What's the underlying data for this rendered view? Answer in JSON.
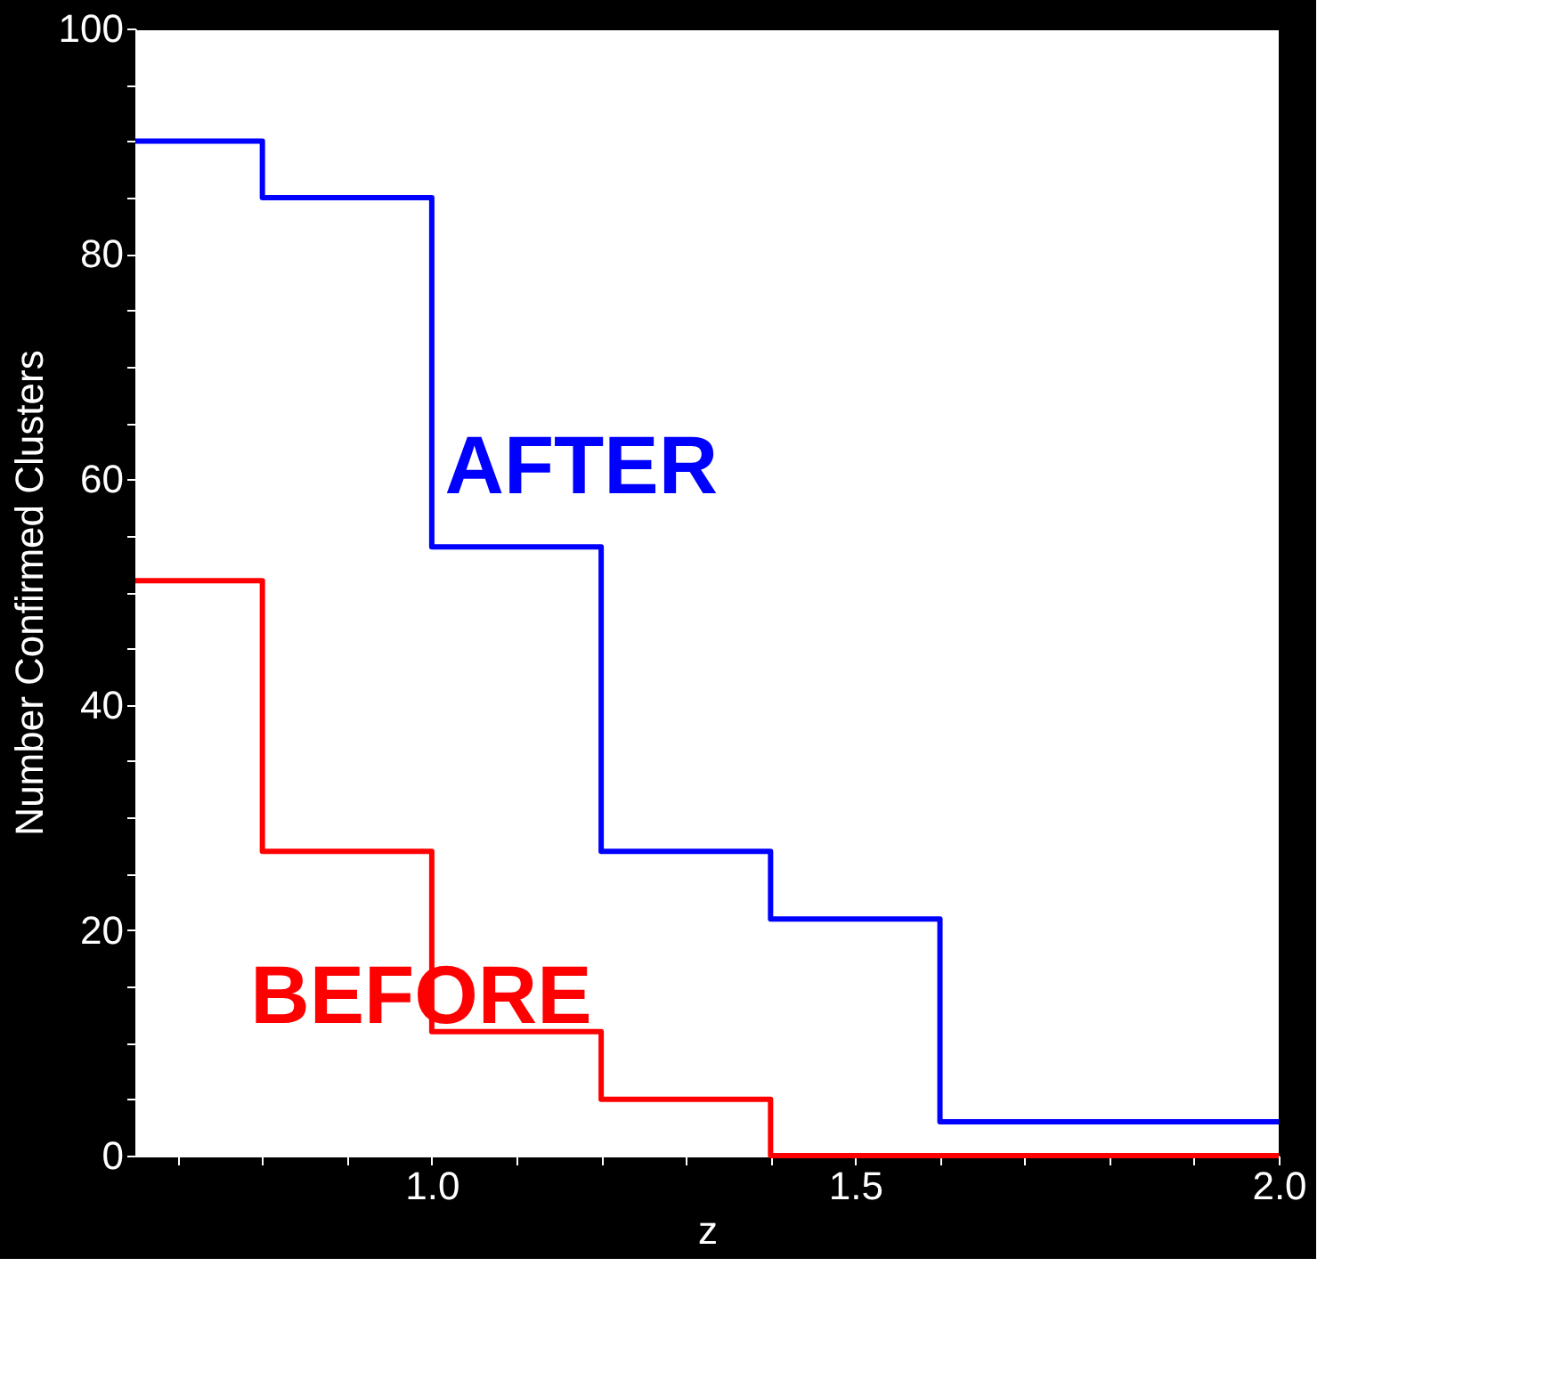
{
  "chart_data": {
    "type": "step",
    "xlabel": "z",
    "ylabel": "Number Confirmed Clusters",
    "x": [
      0.65,
      0.8,
      1.0,
      1.2,
      1.4,
      1.6,
      2.0
    ],
    "series": [
      {
        "name": "AFTER",
        "color": "#0000ff",
        "values": [
          90,
          85,
          54,
          27,
          21,
          3,
          3
        ]
      },
      {
        "name": "BEFORE",
        "color": "#ff0000",
        "values": [
          51,
          27,
          11,
          5,
          0,
          0,
          0
        ]
      }
    ],
    "xlim": [
      0.65,
      2.0
    ],
    "xticks": [
      {
        "value": 0.7,
        "label": null
      },
      {
        "value": 0.8,
        "label": null
      },
      {
        "value": 0.9,
        "label": null
      },
      {
        "value": 1.0,
        "label": "1.0"
      },
      {
        "value": 1.1,
        "label": null
      },
      {
        "value": 1.2,
        "label": null
      },
      {
        "value": 1.3,
        "label": null
      },
      {
        "value": 1.4,
        "label": null
      },
      {
        "value": 1.5,
        "label": "1.5"
      },
      {
        "value": 1.6,
        "label": null
      },
      {
        "value": 1.7,
        "label": null
      },
      {
        "value": 1.8,
        "label": null
      },
      {
        "value": 1.9,
        "label": null
      },
      {
        "value": 2.0,
        "label": "2.0"
      }
    ],
    "ylim": [
      0,
      100
    ],
    "yticks": [
      0,
      {
        "value": 5,
        "label": null
      },
      {
        "value": 10,
        "label": null
      },
      {
        "value": 15,
        "label": null
      },
      20,
      {
        "value": 25,
        "label": null
      },
      {
        "value": 30,
        "label": null
      },
      {
        "value": 35,
        "label": null
      },
      40,
      {
        "value": 45,
        "label": null
      },
      {
        "value": 50,
        "label": null
      },
      {
        "value": 55,
        "label": null
      },
      60,
      {
        "value": 65,
        "label": null
      },
      {
        "value": 70,
        "label": null
      },
      {
        "value": 75,
        "label": null
      },
      80,
      {
        "value": 85,
        "label": null
      },
      {
        "value": 90,
        "label": null
      },
      {
        "value": 95,
        "label": null
      },
      100
    ],
    "grid": false,
    "legend": false,
    "marker": "none",
    "line_style": "solid"
  }
}
